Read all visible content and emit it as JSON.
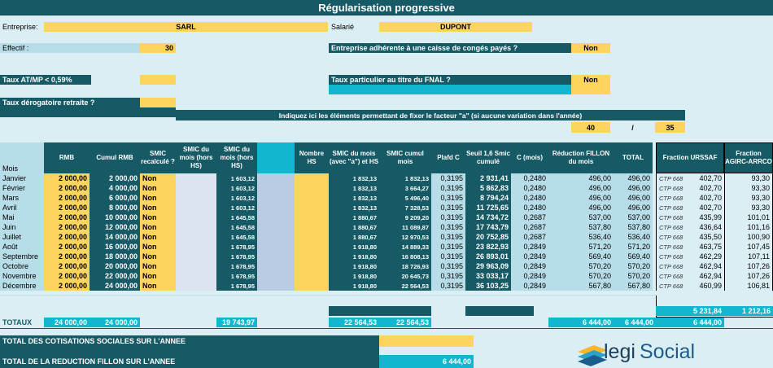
{
  "title": "Régularisation progressive",
  "header": {
    "entreprise_label": "Entreprise:",
    "entreprise_value": "SARL",
    "salarie_label": "Salarié",
    "salarie_value": "DUPONT",
    "effectif_label": "Effectif :",
    "effectif_value": "30",
    "conges_label": "Entreprise adhérente à une caisse de congés payés ?",
    "conges_value": "Non",
    "taux_atmp_label": "Taux AT/MP < 0,59%",
    "fnal_label": "Taux particulier au titre du FNAL ?",
    "fnal_value": "Non",
    "derogatoire_label": "Taux dérogatoire retraite ?",
    "facteur_label": "Indiquez ici les éléments permettant de fixer le facteur \"a\" (si aucune variation dans l'année)",
    "facteur_num": "40",
    "facteur_sep": "/",
    "facteur_den": "35"
  },
  "columns": {
    "mois": "Mois",
    "rmb": "RMB",
    "cumul_rmb": "Cumul RMB",
    "smic_recalcule": "SMIC recalculé ?",
    "smic_mois_hors_hs": "SMIC du mois (hors HS)",
    "smic_mois_hors_hs2": "SMIC du mois (hors HS)",
    "nombre_hs": "Nombre HS",
    "smic_mois_avec_a": "SMIC du mois (avec \"a\") et HS",
    "smic_cumul": "SMIC cumul mois",
    "plafond_c": "Plafd C",
    "seuil": "Seuil 1,6 Smic cumulé",
    "c_mois": "C (mois)",
    "reduction": "Réduction FILLON du mois",
    "total": "TOTAL",
    "fraction_urssaf": "Fraction URSSAF",
    "fraction_agirc": "Fraction AGIRC-ARRCO"
  },
  "rows": [
    {
      "mois": "Janvier",
      "rmb": "2 000,00",
      "cumul": "2 000,00",
      "recalc": "Non",
      "smic": "1 603,12",
      "smic_a": "1 832,13",
      "smic_cumul": "1 832,13",
      "plafd": "0,3195",
      "seuil": "2 931,41",
      "c": "0,2480",
      "red": "496,00",
      "total": "496,00",
      "ctp": "CTP 668",
      "urssaf": "402,70",
      "agirc": "93,30"
    },
    {
      "mois": "Février",
      "rmb": "2 000,00",
      "cumul": "4 000,00",
      "recalc": "Non",
      "smic": "1 603,12",
      "smic_a": "1 832,13",
      "smic_cumul": "3 664,27",
      "plafd": "0,3195",
      "seuil": "5 862,83",
      "c": "0,2480",
      "red": "496,00",
      "total": "496,00",
      "ctp": "CTP 668",
      "urssaf": "402,70",
      "agirc": "93,30"
    },
    {
      "mois": "Mars",
      "rmb": "2 000,00",
      "cumul": "6 000,00",
      "recalc": "Non",
      "smic": "1 603,12",
      "smic_a": "1 832,13",
      "smic_cumul": "5 496,40",
      "plafd": "0,3195",
      "seuil": "8 794,24",
      "c": "0,2480",
      "red": "496,00",
      "total": "496,00",
      "ctp": "CTP 668",
      "urssaf": "402,70",
      "agirc": "93,30"
    },
    {
      "mois": "Avril",
      "rmb": "2 000,00",
      "cumul": "8 000,00",
      "recalc": "Non",
      "smic": "1 603,12",
      "smic_a": "1 832,13",
      "smic_cumul": "7 328,53",
      "plafd": "0,3195",
      "seuil": "11 725,65",
      "c": "0,2480",
      "red": "496,00",
      "total": "496,00",
      "ctp": "CTP 668",
      "urssaf": "402,70",
      "agirc": "93,30"
    },
    {
      "mois": "Mai",
      "rmb": "2 000,00",
      "cumul": "10 000,00",
      "recalc": "Non",
      "smic": "1 645,58",
      "smic_a": "1 880,67",
      "smic_cumul": "9 209,20",
      "plafd": "0,3195",
      "seuil": "14 734,72",
      "c": "0,2687",
      "red": "537,00",
      "total": "537,00",
      "ctp": "CTP 668",
      "urssaf": "435,99",
      "agirc": "101,01"
    },
    {
      "mois": "Juin",
      "rmb": "2 000,00",
      "cumul": "12 000,00",
      "recalc": "Non",
      "smic": "1 645,58",
      "smic_a": "1 880,67",
      "smic_cumul": "11 089,87",
      "plafd": "0,3195",
      "seuil": "17 743,79",
      "c": "0,2687",
      "red": "537,80",
      "total": "537,80",
      "ctp": "CTP 668",
      "urssaf": "436,64",
      "agirc": "101,16"
    },
    {
      "mois": "Juillet",
      "rmb": "2 000,00",
      "cumul": "14 000,00",
      "recalc": "Non",
      "smic": "1 645,58",
      "smic_a": "1 880,67",
      "smic_cumul": "12 970,53",
      "plafd": "0,3195",
      "seuil": "20 752,85",
      "c": "0,2687",
      "red": "536,40",
      "total": "536,40",
      "ctp": "CTP 668",
      "urssaf": "435,50",
      "agirc": "100,90"
    },
    {
      "mois": "Août",
      "rmb": "2 000,00",
      "cumul": "16 000,00",
      "recalc": "Non",
      "smic": "1 678,95",
      "smic_a": "1 918,80",
      "smic_cumul": "14 889,33",
      "plafd": "0,3195",
      "seuil": "23 822,93",
      "c": "0,2849",
      "red": "571,20",
      "total": "571,20",
      "ctp": "CTP 668",
      "urssaf": "463,75",
      "agirc": "107,45"
    },
    {
      "mois": "Septembre",
      "rmb": "2 000,00",
      "cumul": "18 000,00",
      "recalc": "Non",
      "smic": "1 678,95",
      "smic_a": "1 918,80",
      "smic_cumul": "16 808,13",
      "plafd": "0,3195",
      "seuil": "26 893,01",
      "c": "0,2849",
      "red": "569,40",
      "total": "569,40",
      "ctp": "CTP 668",
      "urssaf": "462,29",
      "agirc": "107,11"
    },
    {
      "mois": "Octobre",
      "rmb": "2 000,00",
      "cumul": "20 000,00",
      "recalc": "Non",
      "smic": "1 678,95",
      "smic_a": "1 918,80",
      "smic_cumul": "18 726,93",
      "plafd": "0,3195",
      "seuil": "29 963,09",
      "c": "0,2849",
      "red": "570,20",
      "total": "570,20",
      "ctp": "CTP 668",
      "urssaf": "462,94",
      "agirc": "107,26"
    },
    {
      "mois": "Novembre",
      "rmb": "2 000,00",
      "cumul": "22 000,00",
      "recalc": "Non",
      "smic": "1 678,95",
      "smic_a": "1 918,80",
      "smic_cumul": "20 645,73",
      "plafd": "0,3195",
      "seuil": "33 033,17",
      "c": "0,2849",
      "red": "570,20",
      "total": "570,20",
      "ctp": "CTP 668",
      "urssaf": "462,94",
      "agirc": "107,26"
    },
    {
      "mois": "Décembre",
      "rmb": "2 000,00",
      "cumul": "24 000,00",
      "recalc": "Non",
      "smic": "1 678,95",
      "smic_a": "1 918,80",
      "smic_cumul": "22 564,53",
      "plafd": "0,3195",
      "seuil": "36 103,25",
      "c": "0,2849",
      "red": "567,80",
      "total": "567,80",
      "ctp": "CTP 668",
      "urssaf": "460,99",
      "agirc": "106,81"
    }
  ],
  "totals": {
    "label": "TOTAUX",
    "rmb": "24 000,00",
    "cumul": "24 000,00",
    "smic": "19 743,97",
    "smic_a": "22 564,53",
    "smic_cumul": "22 564,53",
    "red": "6 444,00",
    "total": "6 444,00",
    "urssaf_sum": "5 231,84",
    "agirc_sum": "1 212,16",
    "fraction_total": "6 444,00"
  },
  "footer": {
    "cotisations_label": "TOTAL DES COTISATIONS SOCIALES SUR L'ANNEE",
    "reduction_label": "TOTAL DE LA REDUCTION FILLON SUR L'ANNEE",
    "reduction_value": "6 444,00"
  },
  "logo": {
    "text_legi": "legi",
    "text_social": "Social"
  },
  "colors": {
    "teal": "#165a66",
    "yellow": "#fdd55e",
    "light_blue": "#b7dde8",
    "cyan": "#13b6cf",
    "background": "#daeef3"
  }
}
